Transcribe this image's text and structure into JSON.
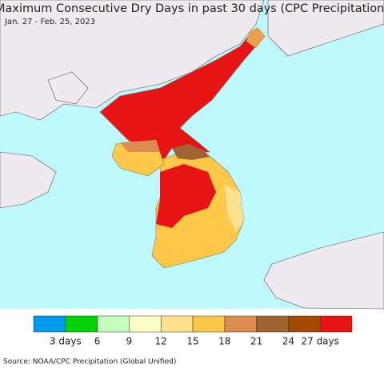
{
  "header": {
    "title": "Maximum Consecutive Dry Days in past 30 days (CPC Precipitation)",
    "subtitle": "Jan. 27 - Feb. 25, 2023"
  },
  "legend": {
    "colors": [
      "#0099f0",
      "#00d200",
      "#c8ffc0",
      "#ffffc8",
      "#ffe08c",
      "#ffc846",
      "#dc8c50",
      "#a06432",
      "#a04b00",
      "#e61414"
    ],
    "labels": [
      "3 days",
      "6",
      "9",
      "12",
      "15",
      "18",
      "21",
      "24",
      "27 days"
    ]
  },
  "source": "Source: NOAA/CPC Precipitation (Global Unified)"
}
